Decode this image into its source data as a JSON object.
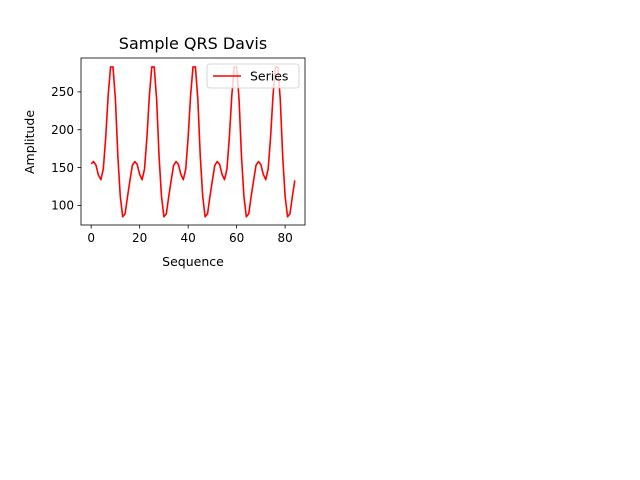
{
  "chart_data": {
    "type": "line",
    "title": "Sample QRS Davis",
    "xlabel": "Sequence",
    "ylabel": "Amplitude",
    "xlim": [
      -4.2,
      88.2
    ],
    "ylim": [
      74.1,
      294.8
    ],
    "xticks": [
      0,
      20,
      40,
      60,
      80
    ],
    "yticks": [
      100,
      150,
      200,
      250
    ],
    "grid": false,
    "legend": "top-right",
    "series": [
      {
        "name": "Series",
        "color": "#ff0000",
        "x": [
          0,
          1,
          2,
          3,
          4,
          5,
          6,
          7,
          8,
          9,
          10,
          11,
          12,
          13,
          14,
          15,
          16,
          17,
          18,
          19,
          20,
          21,
          22,
          23,
          24,
          25,
          26,
          27,
          28,
          29,
          30,
          31,
          32,
          33,
          34,
          35,
          36,
          37,
          38,
          39,
          40,
          41,
          42,
          43,
          44,
          45,
          46,
          47,
          48,
          49,
          50,
          51,
          52,
          53,
          54,
          55,
          56,
          57,
          58,
          59,
          60,
          61,
          62,
          63,
          64,
          65,
          66,
          67,
          68,
          69,
          70,
          71,
          72,
          73,
          74,
          75,
          76,
          77,
          78,
          79,
          80,
          81,
          82,
          83,
          84
        ],
        "y": [
          155,
          158,
          153,
          140,
          134,
          148,
          190,
          245,
          283,
          283,
          240,
          165,
          112,
          85,
          89,
          112,
          133,
          153,
          158,
          154,
          141,
          134,
          148,
          190,
          245,
          283,
          283,
          240,
          165,
          112,
          85,
          89,
          112,
          133,
          153,
          158,
          154,
          141,
          134,
          148,
          190,
          245,
          283,
          283,
          240,
          165,
          112,
          85,
          89,
          112,
          133,
          153,
          158,
          154,
          141,
          134,
          148,
          190,
          245,
          283,
          283,
          240,
          165,
          112,
          85,
          89,
          112,
          133,
          153,
          158,
          154,
          141,
          134,
          148,
          190,
          245,
          283,
          283,
          240,
          165,
          112,
          85,
          89,
          112,
          133
        ]
      }
    ]
  }
}
